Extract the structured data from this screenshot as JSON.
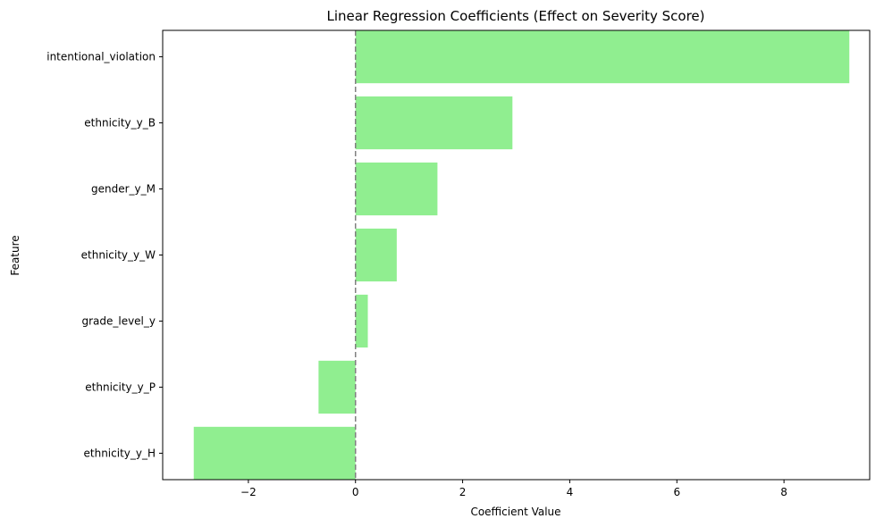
{
  "chart_data": {
    "type": "bar",
    "orientation": "horizontal",
    "title": "Linear Regression Coefficients (Effect on Severity Score)",
    "xlabel": "Coefficient Value",
    "ylabel": "Feature",
    "categories": [
      "intentional_violation",
      "ethnicity_y_B",
      "gender_y_M",
      "ethnicity_y_W",
      "grade_level_y",
      "ethnicity_y_P",
      "ethnicity_y_H"
    ],
    "values": [
      9.22,
      2.93,
      1.53,
      0.77,
      0.23,
      -0.69,
      -3.02
    ],
    "xlim": [
      -3.6,
      9.6
    ],
    "xticks": [
      -2,
      0,
      2,
      4,
      6,
      8
    ],
    "xtick_labels": [
      "−2",
      "0",
      "2",
      "4",
      "6",
      "8"
    ],
    "reference_line": {
      "x": 0,
      "style": "dashed"
    },
    "grid": false,
    "bar_color": "#90ee90",
    "reference_line_color": "#808080"
  }
}
